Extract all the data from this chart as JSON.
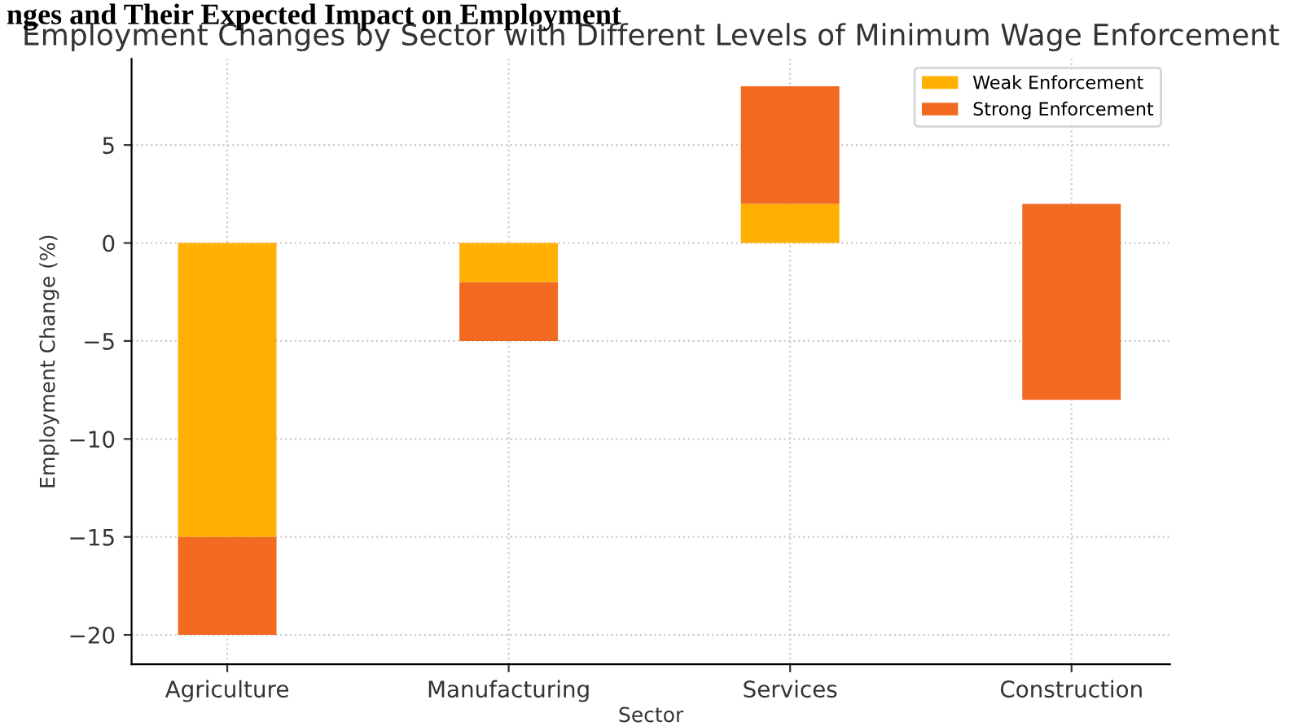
{
  "chart_data": {
    "type": "bar",
    "title": "Employment Changes by Sector with Different Levels of Minimum Wage Enforcement",
    "annotations": [
      "nges and Their Expected Impact on Employment"
    ],
    "xlabel": "Sector",
    "ylabel": "Employment Change (%)",
    "categories": [
      "Agriculture",
      "Manufacturing",
      "Services",
      "Construction"
    ],
    "series": [
      {
        "name": "Weak Enforcement",
        "color": "#ffb000",
        "values": [
          -15,
          -2,
          2,
          null
        ]
      },
      {
        "name": "Strong Enforcement",
        "color": "#f26a21",
        "values": [
          -5,
          -3,
          6,
          -10
        ],
        "base": [
          -15,
          -2,
          2,
          2
        ]
      }
    ],
    "stacked": true,
    "ylim": [
      -21.5,
      9.4
    ],
    "yticks": [
      {
        "value": -20,
        "label": "−20"
      },
      {
        "value": -15,
        "label": "−15"
      },
      {
        "value": -10,
        "label": "−10"
      },
      {
        "value": -5,
        "label": "−5"
      },
      0,
      5
    ],
    "grid": true,
    "legend": "top right"
  }
}
